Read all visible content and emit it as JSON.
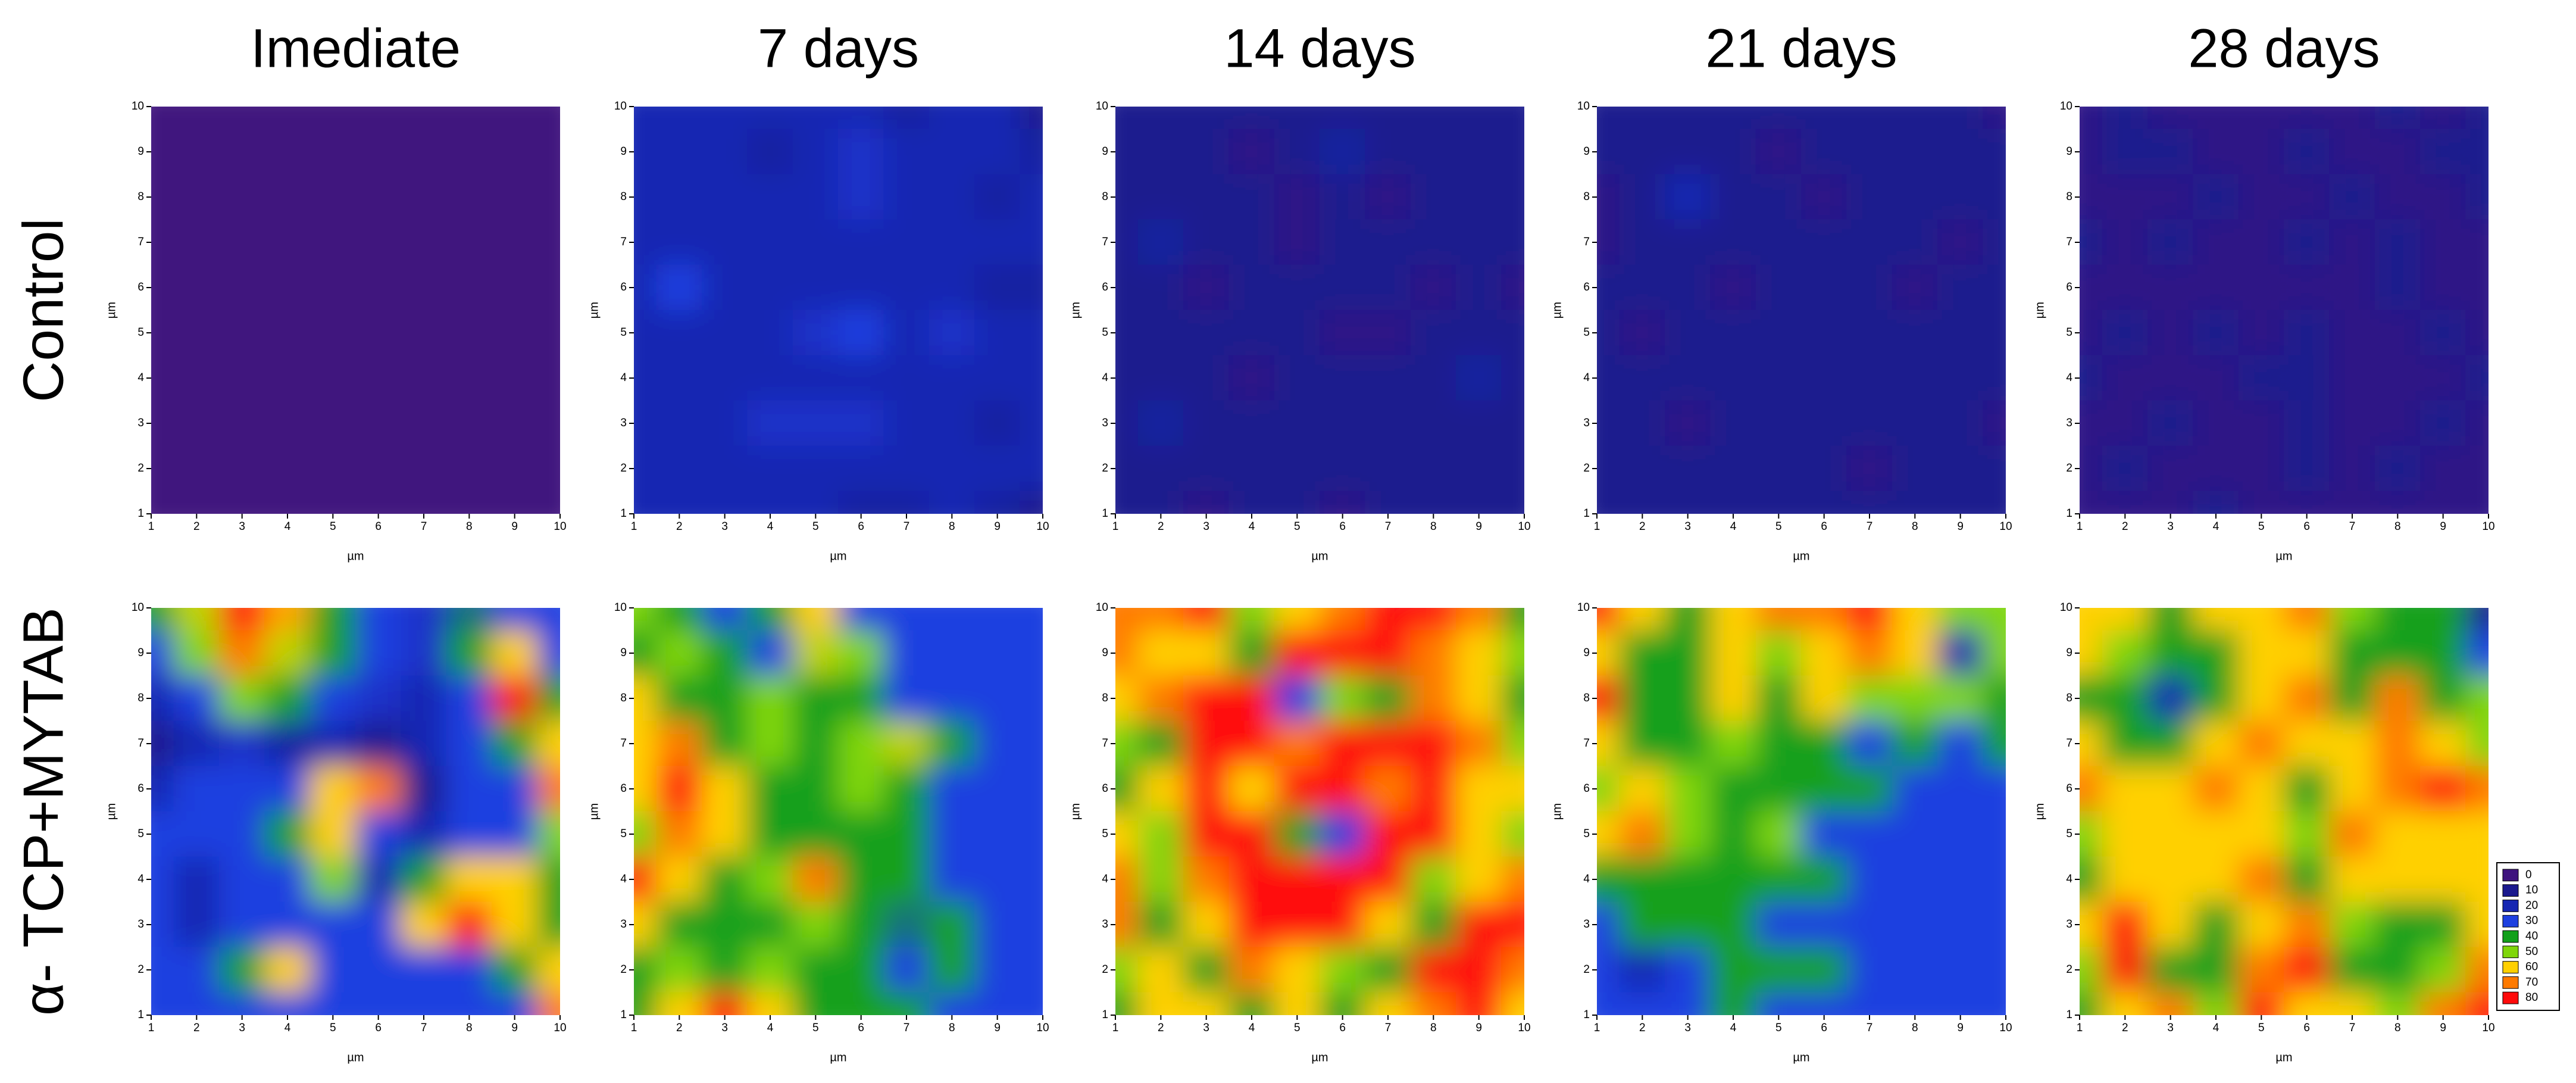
{
  "chart_data": {
    "type": "contour",
    "columns": [
      "Imediate",
      "7 days",
      "14 days",
      "21 days",
      "28 days"
    ],
    "rows": [
      "Control",
      "α- TCP+MYTAB"
    ],
    "xlabel": "µm",
    "ylabel": "µm",
    "x": [
      1,
      2,
      3,
      4,
      5,
      6,
      7,
      8,
      9,
      10
    ],
    "y": [
      10,
      9,
      8,
      7,
      6,
      5,
      4,
      3,
      2,
      1
    ],
    "xlim": [
      1,
      10
    ],
    "ylim": [
      1,
      10
    ],
    "xticks": [
      1,
      2,
      3,
      4,
      5,
      6,
      7,
      8,
      9,
      10
    ],
    "yticks": [
      1,
      2,
      3,
      4,
      5,
      6,
      7,
      8,
      9,
      10
    ],
    "levels": [
      0,
      10,
      20,
      30,
      40,
      50,
      60,
      70,
      80
    ],
    "colors": [
      "#3f137e",
      "#1c1a8e",
      "#1626b2",
      "#1e40e0",
      "#12a01a",
      "#7fd60a",
      "#ffd000",
      "#ff7a00",
      "#ff0a0a"
    ],
    "panels": [
      [
        [
          [
            0,
            0,
            0,
            0,
            0,
            0,
            0,
            0,
            0,
            0
          ],
          [
            0,
            0,
            0,
            0,
            0,
            0,
            0,
            0,
            0,
            0
          ],
          [
            0,
            0,
            0,
            0,
            0,
            0,
            0,
            0,
            0,
            0
          ],
          [
            0,
            0,
            0,
            0,
            0,
            0,
            0,
            0,
            0,
            0
          ],
          [
            0,
            0,
            0,
            0,
            0,
            0,
            0,
            0,
            0,
            0
          ],
          [
            0,
            0,
            0,
            0,
            0,
            0,
            0,
            0,
            0,
            0
          ],
          [
            0,
            0,
            0,
            0,
            0,
            0,
            0,
            0,
            0,
            0
          ],
          [
            0,
            0,
            0,
            0,
            0,
            0,
            0,
            0,
            0,
            0
          ],
          [
            0,
            0,
            0,
            0,
            0,
            0,
            0,
            0,
            0,
            0
          ],
          [
            0,
            0,
            0,
            0,
            0,
            0,
            0,
            0,
            0,
            0
          ]
        ],
        [
          [
            20,
            20,
            20,
            20,
            20,
            20,
            15,
            20,
            20,
            10
          ],
          [
            20,
            20,
            20,
            15,
            20,
            25,
            20,
            20,
            20,
            15
          ],
          [
            20,
            20,
            20,
            20,
            20,
            25,
            20,
            20,
            15,
            20
          ],
          [
            20,
            20,
            20,
            20,
            20,
            20,
            20,
            20,
            20,
            20
          ],
          [
            20,
            30,
            20,
            20,
            20,
            20,
            20,
            20,
            15,
            15
          ],
          [
            20,
            20,
            20,
            20,
            25,
            30,
            20,
            25,
            20,
            20
          ],
          [
            20,
            20,
            20,
            20,
            20,
            20,
            20,
            20,
            20,
            20
          ],
          [
            20,
            20,
            20,
            25,
            25,
            25,
            20,
            20,
            15,
            20
          ],
          [
            20,
            20,
            20,
            20,
            20,
            20,
            20,
            20,
            20,
            20
          ],
          [
            20,
            20,
            20,
            20,
            20,
            15,
            15,
            20,
            15,
            10
          ]
        ],
        [
          [
            10,
            10,
            10,
            10,
            10,
            10,
            10,
            10,
            10,
            10
          ],
          [
            10,
            10,
            10,
            5,
            10,
            15,
            10,
            10,
            10,
            10
          ],
          [
            10,
            10,
            10,
            10,
            5,
            10,
            5,
            10,
            10,
            10
          ],
          [
            10,
            15,
            10,
            10,
            5,
            10,
            10,
            10,
            10,
            10
          ],
          [
            10,
            10,
            5,
            10,
            10,
            10,
            10,
            5,
            10,
            5
          ],
          [
            10,
            10,
            10,
            10,
            10,
            5,
            5,
            10,
            10,
            10
          ],
          [
            10,
            10,
            10,
            5,
            10,
            10,
            10,
            10,
            15,
            10
          ],
          [
            10,
            15,
            10,
            10,
            10,
            10,
            10,
            10,
            10,
            10
          ],
          [
            10,
            10,
            10,
            10,
            10,
            10,
            10,
            10,
            10,
            10
          ],
          [
            10,
            10,
            5,
            10,
            10,
            5,
            10,
            10,
            10,
            10
          ]
        ],
        [
          [
            10,
            10,
            10,
            10,
            10,
            10,
            10,
            10,
            10,
            5
          ],
          [
            10,
            10,
            10,
            10,
            5,
            10,
            10,
            10,
            10,
            10
          ],
          [
            5,
            10,
            20,
            10,
            10,
            5,
            10,
            10,
            10,
            10
          ],
          [
            5,
            10,
            10,
            10,
            10,
            10,
            10,
            10,
            5,
            10
          ],
          [
            10,
            10,
            10,
            5,
            10,
            10,
            10,
            5,
            10,
            10
          ],
          [
            10,
            5,
            10,
            10,
            10,
            10,
            10,
            10,
            10,
            10
          ],
          [
            10,
            10,
            10,
            10,
            10,
            10,
            10,
            10,
            10,
            10
          ],
          [
            10,
            10,
            5,
            10,
            10,
            10,
            10,
            10,
            10,
            5
          ],
          [
            10,
            10,
            10,
            10,
            10,
            10,
            5,
            10,
            10,
            10
          ],
          [
            10,
            10,
            10,
            10,
            10,
            10,
            10,
            10,
            10,
            10
          ]
        ],
        [
          [
            5,
            10,
            5,
            5,
            5,
            5,
            5,
            10,
            5,
            10
          ],
          [
            5,
            10,
            10,
            5,
            5,
            10,
            5,
            5,
            10,
            10
          ],
          [
            5,
            5,
            5,
            10,
            5,
            5,
            10,
            5,
            5,
            10
          ],
          [
            10,
            5,
            10,
            5,
            5,
            10,
            5,
            10,
            5,
            5
          ],
          [
            5,
            5,
            5,
            5,
            5,
            5,
            5,
            10,
            5,
            5
          ],
          [
            5,
            10,
            5,
            10,
            5,
            10,
            5,
            5,
            10,
            5
          ],
          [
            10,
            5,
            5,
            5,
            10,
            10,
            5,
            5,
            5,
            10
          ],
          [
            5,
            5,
            10,
            5,
            5,
            10,
            5,
            5,
            10,
            5
          ],
          [
            5,
            10,
            5,
            5,
            5,
            10,
            5,
            10,
            5,
            5
          ],
          [
            5,
            5,
            5,
            10,
            5,
            5,
            5,
            5,
            5,
            5
          ]
        ]
      ],
      [
        [
          [
            40,
            55,
            80,
            65,
            40,
            30,
            25,
            35,
            30,
            30
          ],
          [
            30,
            50,
            70,
            55,
            40,
            30,
            25,
            40,
            60,
            30
          ],
          [
            20,
            30,
            50,
            40,
            30,
            25,
            20,
            30,
            80,
            40
          ],
          [
            10,
            20,
            25,
            15,
            20,
            10,
            20,
            30,
            40,
            60
          ],
          [
            20,
            30,
            30,
            30,
            60,
            70,
            10,
            30,
            30,
            70
          ],
          [
            30,
            30,
            30,
            40,
            60,
            30,
            20,
            30,
            30,
            50
          ],
          [
            30,
            20,
            30,
            30,
            50,
            20,
            40,
            60,
            60,
            40
          ],
          [
            30,
            20,
            30,
            30,
            30,
            30,
            60,
            80,
            60,
            40
          ],
          [
            30,
            30,
            40,
            60,
            30,
            30,
            30,
            30,
            40,
            60
          ],
          [
            30,
            30,
            30,
            30,
            30,
            30,
            30,
            30,
            30,
            70
          ]
        ],
        [
          [
            50,
            40,
            30,
            40,
            60,
            30,
            30,
            30,
            30,
            30
          ],
          [
            40,
            50,
            40,
            30,
            55,
            50,
            30,
            30,
            30,
            30
          ],
          [
            60,
            40,
            40,
            50,
            40,
            40,
            30,
            30,
            30,
            30
          ],
          [
            60,
            70,
            40,
            50,
            40,
            50,
            55,
            40,
            30,
            30
          ],
          [
            60,
            80,
            60,
            40,
            40,
            50,
            40,
            30,
            30,
            30
          ],
          [
            50,
            70,
            60,
            40,
            40,
            40,
            40,
            30,
            30,
            30
          ],
          [
            80,
            60,
            40,
            50,
            70,
            40,
            40,
            30,
            30,
            30
          ],
          [
            60,
            40,
            40,
            40,
            50,
            40,
            35,
            40,
            30,
            30
          ],
          [
            40,
            50,
            40,
            50,
            40,
            40,
            30,
            40,
            30,
            30
          ],
          [
            40,
            60,
            80,
            60,
            40,
            40,
            40,
            30,
            30,
            30
          ]
        ],
        [
          [
            70,
            70,
            80,
            50,
            60,
            70,
            80,
            80,
            70,
            40
          ],
          [
            70,
            60,
            60,
            40,
            80,
            80,
            80,
            70,
            60,
            50
          ],
          [
            60,
            70,
            80,
            80,
            30,
            50,
            40,
            70,
            60,
            40
          ],
          [
            50,
            40,
            80,
            80,
            70,
            80,
            80,
            80,
            70,
            50
          ],
          [
            40,
            60,
            80,
            60,
            80,
            80,
            70,
            80,
            60,
            60
          ],
          [
            60,
            50,
            80,
            80,
            40,
            30,
            80,
            80,
            60,
            50
          ],
          [
            70,
            50,
            70,
            80,
            80,
            80,
            80,
            50,
            60,
            70
          ],
          [
            70,
            40,
            60,
            80,
            80,
            80,
            60,
            40,
            80,
            80
          ],
          [
            50,
            60,
            40,
            70,
            60,
            50,
            40,
            80,
            80,
            70
          ],
          [
            40,
            60,
            60,
            40,
            60,
            40,
            60,
            70,
            80,
            60
          ]
        ],
        [
          [
            80,
            60,
            40,
            60,
            70,
            70,
            80,
            60,
            50,
            50
          ],
          [
            60,
            40,
            40,
            60,
            50,
            60,
            70,
            60,
            20,
            50
          ],
          [
            80,
            40,
            40,
            60,
            40,
            60,
            50,
            50,
            50,
            40
          ],
          [
            60,
            40,
            40,
            50,
            40,
            40,
            30,
            40,
            30,
            40
          ],
          [
            50,
            60,
            50,
            40,
            40,
            40,
            40,
            30,
            30,
            30
          ],
          [
            60,
            70,
            50,
            40,
            50,
            30,
            30,
            30,
            30,
            30
          ],
          [
            40,
            40,
            40,
            40,
            40,
            40,
            30,
            30,
            30,
            30
          ],
          [
            30,
            40,
            40,
            40,
            30,
            30,
            30,
            30,
            30,
            30
          ],
          [
            30,
            20,
            30,
            40,
            40,
            40,
            30,
            30,
            30,
            30
          ],
          [
            30,
            30,
            30,
            40,
            30,
            30,
            30,
            30,
            30,
            30
          ]
        ],
        [
          [
            60,
            60,
            40,
            60,
            60,
            70,
            50,
            40,
            40,
            10
          ],
          [
            60,
            50,
            40,
            40,
            60,
            60,
            40,
            40,
            40,
            30
          ],
          [
            40,
            40,
            20,
            40,
            60,
            70,
            40,
            70,
            40,
            50
          ],
          [
            60,
            40,
            40,
            60,
            70,
            60,
            60,
            70,
            60,
            50
          ],
          [
            70,
            60,
            60,
            70,
            60,
            40,
            60,
            70,
            80,
            70
          ],
          [
            50,
            60,
            60,
            60,
            60,
            50,
            70,
            60,
            60,
            60
          ],
          [
            40,
            60,
            60,
            60,
            70,
            40,
            60,
            60,
            60,
            60
          ],
          [
            60,
            80,
            60,
            40,
            60,
            70,
            50,
            40,
            40,
            60
          ],
          [
            50,
            80,
            40,
            40,
            70,
            80,
            40,
            40,
            50,
            70
          ],
          [
            40,
            60,
            70,
            50,
            80,
            60,
            60,
            50,
            70,
            80
          ]
        ]
      ]
    ]
  }
}
